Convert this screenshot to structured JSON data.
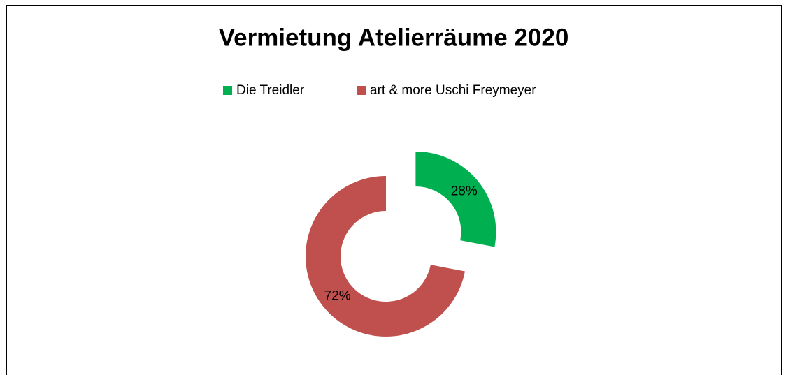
{
  "chart_data": {
    "type": "donut",
    "title": "Vermietung Atelierräume 2020",
    "categories": [
      "Die Treidler",
      "art & more Uschi Freymeyer"
    ],
    "values": [
      28,
      72
    ],
    "value_labels": [
      "28%",
      "72%"
    ],
    "colors": [
      "#00b050",
      "#c0504d"
    ],
    "legend": "top"
  }
}
